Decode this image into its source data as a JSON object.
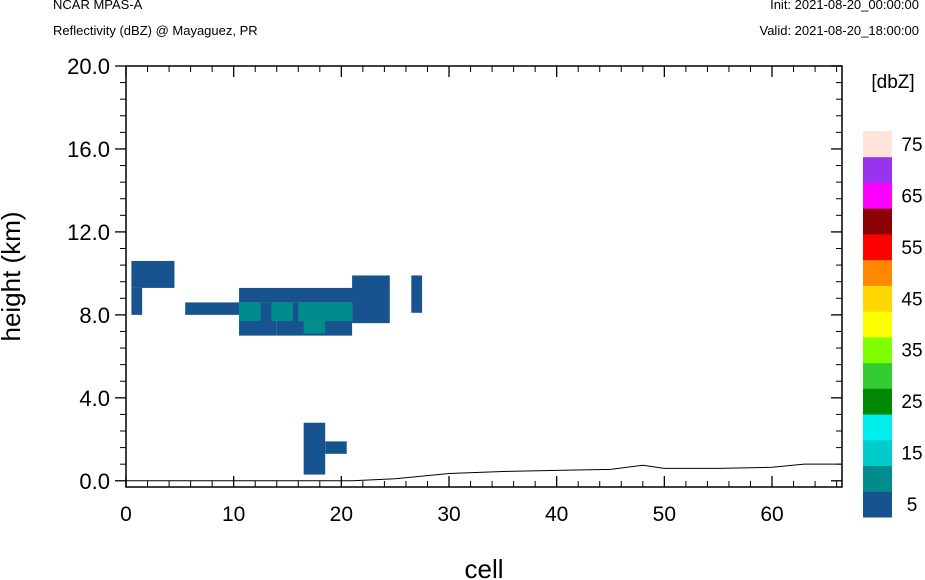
{
  "header": {
    "model": "NCAR MPAS-A",
    "field": "Reflectivity (dBZ) @ Mayaguez, PR",
    "init": "Init: 2021-08-20_00:00:00",
    "valid": "Valid: 2021-08-20_18:00:00"
  },
  "chart_data": {
    "type": "heatmap",
    "xlabel": "cell",
    "ylabel": "height (km)",
    "xlim": [
      0,
      66.5
    ],
    "ylim": [
      -0.3,
      20.0
    ],
    "x_ticks": [
      0,
      10,
      20,
      30,
      40,
      50,
      60
    ],
    "y_ticks": [
      0.0,
      4.0,
      8.0,
      12.0,
      16.0,
      20.0
    ],
    "y_tick_labels": [
      "0.0",
      "4.0",
      "8.0",
      "12.0",
      "16.0",
      "20.0"
    ],
    "colorbar": {
      "unit_label": "[dbZ]",
      "levels": [
        5,
        10,
        15,
        20,
        25,
        30,
        35,
        40,
        45,
        50,
        55,
        60,
        65,
        70,
        75
      ],
      "tick_labels": [
        "5",
        "15",
        "25",
        "35",
        "45",
        "55",
        "65",
        "75"
      ],
      "colors": [
        "#17548f",
        "#008c8c",
        "#00cccc",
        "#00eeee",
        "#008800",
        "#33cc33",
        "#7fff00",
        "#ffff00",
        "#ffd700",
        "#ff8800",
        "#ff0000",
        "#8b0000",
        "#ff00ff",
        "#9933ee",
        "#ffe4da"
      ]
    },
    "cells": [
      {
        "x": [
          0.5,
          4.5
        ],
        "y": [
          9.3,
          10.6
        ],
        "dbz": 5
      },
      {
        "x": [
          0.5,
          1.5
        ],
        "y": [
          8.0,
          9.3
        ],
        "dbz": 5
      },
      {
        "x": [
          5.5,
          10.5
        ],
        "y": [
          8.0,
          8.6
        ],
        "dbz": 5
      },
      {
        "x": [
          10.5,
          22.0
        ],
        "y": [
          8.6,
          9.3
        ],
        "dbz": 5
      },
      {
        "x": [
          10.5,
          14.0
        ],
        "y": [
          7.0,
          8.6
        ],
        "dbz": 5
      },
      {
        "x": [
          14.0,
          21.0
        ],
        "y": [
          7.0,
          8.6
        ],
        "dbz": 5
      },
      {
        "x": [
          21.0,
          24.5
        ],
        "y": [
          7.6,
          9.9
        ],
        "dbz": 5
      },
      {
        "x": [
          26.5,
          27.5
        ],
        "y": [
          8.1,
          9.9
        ],
        "dbz": 5
      },
      {
        "x": [
          16.5,
          18.5
        ],
        "y": [
          0.3,
          2.8
        ],
        "dbz": 5
      },
      {
        "x": [
          18.5,
          20.5
        ],
        "y": [
          1.3,
          1.9
        ],
        "dbz": 5
      },
      {
        "x": [
          10.5,
          12.5
        ],
        "y": [
          7.7,
          8.6
        ],
        "dbz": 10
      },
      {
        "x": [
          13.5,
          15.5
        ],
        "y": [
          7.7,
          8.6
        ],
        "dbz": 10
      },
      {
        "x": [
          16.0,
          21.0
        ],
        "y": [
          7.7,
          8.6
        ],
        "dbz": 10
      },
      {
        "x": [
          16.5,
          18.5
        ],
        "y": [
          7.1,
          7.7
        ],
        "dbz": 10
      }
    ],
    "terrain": {
      "x": [
        0,
        21,
        25,
        30,
        35,
        40,
        45,
        48,
        50,
        55,
        60,
        63,
        66.5
      ],
      "height": [
        0.0,
        0.0,
        0.1,
        0.35,
        0.45,
        0.5,
        0.55,
        0.75,
        0.6,
        0.6,
        0.65,
        0.8,
        0.8
      ]
    }
  }
}
